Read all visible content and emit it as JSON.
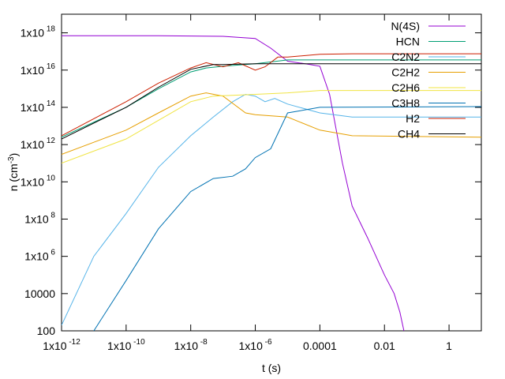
{
  "chart_data": {
    "type": "line",
    "xlabel": "t (s)",
    "ylabel": "n (cm^-3)",
    "x_scale": "log",
    "y_scale": "log",
    "xlim": [
      1e-12,
      10
    ],
    "ylim": [
      100,
      1e+19
    ],
    "grid": false,
    "legend_position": "top-right",
    "x_ticks": [
      {
        "value": 1e-12,
        "label": "1x10",
        "exp": "-12"
      },
      {
        "value": 1e-10,
        "label": "1x10",
        "exp": "-10"
      },
      {
        "value": 1e-08,
        "label": "1x10",
        "exp": "-8"
      },
      {
        "value": 1e-06,
        "label": "1x10",
        "exp": "-6"
      },
      {
        "value": 0.0001,
        "label": "0.0001",
        "exp": ""
      },
      {
        "value": 0.01,
        "label": "0.01",
        "exp": ""
      },
      {
        "value": 1,
        "label": "1",
        "exp": ""
      }
    ],
    "y_ticks": [
      {
        "value": 100,
        "label": "100",
        "exp": ""
      },
      {
        "value": 10000.0,
        "label": "10000",
        "exp": ""
      },
      {
        "value": 1000000.0,
        "label": "1x10",
        "exp": "6"
      },
      {
        "value": 100000000.0,
        "label": "1x10",
        "exp": "8"
      },
      {
        "value": 10000000000.0,
        "label": "1x10",
        "exp": "10"
      },
      {
        "value": 1000000000000.0,
        "label": "1x10",
        "exp": "12"
      },
      {
        "value": 100000000000000.0,
        "label": "1x10",
        "exp": "14"
      },
      {
        "value": 1e+16,
        "label": "1x10",
        "exp": "16"
      },
      {
        "value": 1e+18,
        "label": "1x10",
        "exp": "18"
      }
    ],
    "series": [
      {
        "name": "N(4S)",
        "color": "#9400d3",
        "points": [
          [
            1e-12,
            7e+17
          ],
          [
            1e-09,
            7e+17
          ],
          [
            1e-07,
            6.5e+17
          ],
          [
            1e-06,
            5e+17
          ],
          [
            3e-06,
            1.5e+17
          ],
          [
            1e-05,
            3e+16
          ],
          [
            5e-05,
            2e+16
          ],
          [
            0.0001,
            1.6e+16
          ],
          [
            0.0002,
            500000000000000.0
          ],
          [
            0.0005,
            100000000000.0
          ],
          [
            0.001,
            500000000.0
          ],
          [
            0.003,
            10000000.0
          ],
          [
            0.01,
            100000.0
          ],
          [
            0.02,
            10000.0
          ],
          [
            0.03,
            1000.0
          ],
          [
            0.04,
            100
          ]
        ]
      },
      {
        "name": "HCN",
        "color": "#009e73",
        "points": [
          [
            1e-12,
            2500000000000.0
          ],
          [
            1e-10,
            100000000000000.0
          ],
          [
            1e-09,
            1000000000000000.0
          ],
          [
            1e-08,
            8000000000000000.0
          ],
          [
            3e-08,
            1.3e+16
          ],
          [
            1e-07,
            1.6e+16
          ],
          [
            1e-06,
            2.2e+16
          ],
          [
            1e-05,
            3.5e+16
          ],
          [
            0.001,
            3.5e+16
          ],
          [
            10,
            3.5e+16
          ]
        ]
      },
      {
        "name": "C2N2",
        "color": "#56b4e9",
        "points": [
          [
            1e-12,
            200
          ],
          [
            1e-11,
            1000000.0
          ],
          [
            1e-10,
            200000000.0
          ],
          [
            1e-09,
            60000000000.0
          ],
          [
            1e-08,
            3000000000000.0
          ],
          [
            5e-08,
            30000000000000.0
          ],
          [
            2e-07,
            200000000000000.0
          ],
          [
            5e-07,
            500000000000000.0
          ],
          [
            1e-06,
            400000000000000.0
          ],
          [
            2e-06,
            200000000000000.0
          ],
          [
            4e-06,
            300000000000000.0
          ],
          [
            1e-05,
            150000000000000.0
          ],
          [
            0.0001,
            50000000000000.0
          ],
          [
            0.001,
            30000000000000.0
          ],
          [
            10,
            30000000000000.0
          ]
        ]
      },
      {
        "name": "C2H2",
        "color": "#e69f00",
        "points": [
          [
            1e-12,
            300000000000.0
          ],
          [
            1e-10,
            6000000000000.0
          ],
          [
            1e-09,
            50000000000000.0
          ],
          [
            1e-08,
            400000000000000.0
          ],
          [
            3e-08,
            600000000000000.0
          ],
          [
            1e-07,
            400000000000000.0
          ],
          [
            5e-07,
            50000000000000.0
          ],
          [
            1e-06,
            40000000000000.0
          ],
          [
            1e-05,
            30000000000000.0
          ],
          [
            0.0001,
            6000000000000.0
          ],
          [
            0.001,
            3000000000000.0
          ],
          [
            10,
            2500000000000.0
          ]
        ]
      },
      {
        "name": "C2H6",
        "color": "#f0e442",
        "points": [
          [
            1e-12,
            100000000000.0
          ],
          [
            1e-10,
            2000000000000.0
          ],
          [
            1e-09,
            20000000000000.0
          ],
          [
            1e-08,
            200000000000000.0
          ],
          [
            5e-08,
            400000000000000.0
          ],
          [
            1e-06,
            500000000000000.0
          ],
          [
            1e-05,
            600000000000000.0
          ],
          [
            0.0001,
            800000000000000.0
          ],
          [
            10,
            800000000000000.0
          ]
        ]
      },
      {
        "name": "C3H8",
        "color": "#0072b2",
        "points": [
          [
            1e-11,
            100
          ],
          [
            1e-10,
            50000.0
          ],
          [
            1e-09,
            30000000.0
          ],
          [
            1e-08,
            3000000000.0
          ],
          [
            5e-08,
            15000000000.0
          ],
          [
            2e-07,
            20000000000.0
          ],
          [
            5e-07,
            50000000000.0
          ],
          [
            1e-06,
            200000000000.0
          ],
          [
            3e-06,
            600000000000.0
          ],
          [
            1e-05,
            50000000000000.0
          ],
          [
            0.0001,
            100000000000000.0
          ],
          [
            10,
            110000000000000.0
          ]
        ]
      },
      {
        "name": "H2",
        "color": "#cc1f00",
        "points": [
          [
            1e-12,
            3000000000000.0
          ],
          [
            1e-10,
            200000000000000.0
          ],
          [
            1e-09,
            2000000000000000.0
          ],
          [
            1e-08,
            1.3e+16
          ],
          [
            3e-08,
            2.5e+16
          ],
          [
            1e-07,
            1.5e+16
          ],
          [
            3e-07,
            2.5e+16
          ],
          [
            1e-06,
            1e+16
          ],
          [
            2e-06,
            1.5e+16
          ],
          [
            5e-06,
            5e+16
          ],
          [
            1e-05,
            5e+16
          ],
          [
            0.0001,
            7e+16
          ],
          [
            0.001,
            7.5e+16
          ],
          [
            10,
            7.5e+16
          ]
        ]
      },
      {
        "name": "CH4",
        "color": "#000000",
        "points": [
          [
            1e-12,
            2000000000000.0
          ],
          [
            1e-10,
            100000000000000.0
          ],
          [
            1e-09,
            1200000000000000.0
          ],
          [
            1e-08,
            1.1e+16
          ],
          [
            5e-08,
            2e+16
          ],
          [
            1e-07,
            2e+16
          ],
          [
            1e-06,
            2.2e+16
          ],
          [
            0.0001,
            2.2e+16
          ],
          [
            10,
            2.2e+16
          ]
        ]
      }
    ]
  }
}
